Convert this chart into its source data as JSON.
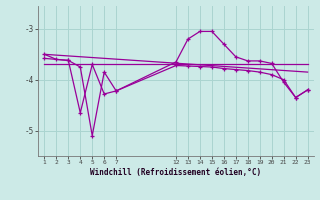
{
  "background_color": "#cceae7",
  "grid_color": "#aad4d0",
  "line_color": "#990099",
  "title": "Windchill (Refroidissement éolien,°C)",
  "xlim": [
    0.5,
    23.5
  ],
  "ylim": [
    -5.5,
    -2.55
  ],
  "yticks": [
    -5,
    -4,
    -3
  ],
  "xtick_labels": [
    "1",
    "2",
    "3",
    "4",
    "5",
    "6",
    "7",
    "12",
    "13",
    "14",
    "15",
    "16",
    "17",
    "18",
    "19",
    "20",
    "21",
    "22",
    "23"
  ],
  "xtick_pos": [
    1,
    2,
    3,
    4,
    5,
    6,
    7,
    12,
    13,
    14,
    15,
    16,
    17,
    18,
    19,
    20,
    21,
    22,
    23
  ],
  "line1_x": [
    1,
    23
  ],
  "line1_y": [
    -3.5,
    -3.85
  ],
  "line2_x": [
    1,
    23
  ],
  "line2_y": [
    -3.7,
    -3.7
  ],
  "curve1_x": [
    1,
    2,
    3,
    4,
    5,
    6,
    7,
    12,
    13,
    14,
    15,
    16,
    17,
    18,
    19,
    20,
    21,
    22,
    23
  ],
  "curve1_y": [
    -3.5,
    -3.6,
    -3.62,
    -4.65,
    -3.7,
    -4.28,
    -4.22,
    -3.65,
    -3.2,
    -3.05,
    -3.05,
    -3.3,
    -3.55,
    -3.63,
    -3.63,
    -3.68,
    -4.05,
    -4.35,
    -4.2
  ],
  "curve2_x": [
    1,
    3,
    4,
    5,
    6,
    7,
    12,
    13,
    14,
    15,
    16,
    17,
    18,
    19,
    20,
    21,
    22,
    23
  ],
  "curve2_y": [
    -3.58,
    -3.62,
    -3.75,
    -5.1,
    -3.85,
    -4.22,
    -3.72,
    -3.73,
    -3.74,
    -3.75,
    -3.78,
    -3.8,
    -3.82,
    -3.85,
    -3.9,
    -4.0,
    -4.35,
    -4.2
  ]
}
